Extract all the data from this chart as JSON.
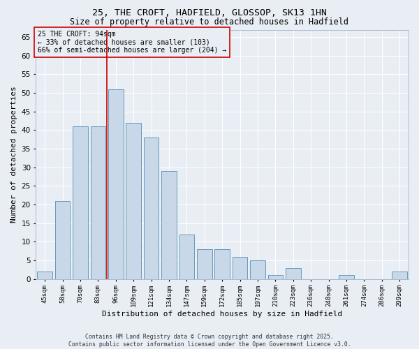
{
  "title1": "25, THE CROFT, HADFIELD, GLOSSOP, SK13 1HN",
  "title2": "Size of property relative to detached houses in Hadfield",
  "xlabel": "Distribution of detached houses by size in Hadfield",
  "ylabel": "Number of detached properties",
  "categories": [
    "45sqm",
    "58sqm",
    "70sqm",
    "83sqm",
    "96sqm",
    "109sqm",
    "121sqm",
    "134sqm",
    "147sqm",
    "159sqm",
    "172sqm",
    "185sqm",
    "197sqm",
    "210sqm",
    "223sqm",
    "236sqm",
    "248sqm",
    "261sqm",
    "274sqm",
    "286sqm",
    "299sqm"
  ],
  "values": [
    2,
    21,
    41,
    41,
    51,
    42,
    38,
    29,
    12,
    8,
    8,
    6,
    5,
    1,
    3,
    0,
    0,
    1,
    0,
    0,
    2
  ],
  "bar_color": "#c8d8e8",
  "bar_edge_color": "#6699bb",
  "vline_color": "#cc0000",
  "vline_x_index": 4,
  "annotation_text": "25 THE CROFT: 94sqm\n← 33% of detached houses are smaller (103)\n66% of semi-detached houses are larger (204) →",
  "ylim": [
    0,
    67
  ],
  "yticks": [
    0,
    5,
    10,
    15,
    20,
    25,
    30,
    35,
    40,
    45,
    50,
    55,
    60,
    65
  ],
  "background_color": "#e8eef4",
  "grid_color": "#ffffff",
  "footer_text": "Contains HM Land Registry data © Crown copyright and database right 2025.\nContains public sector information licensed under the Open Government Licence v3.0."
}
